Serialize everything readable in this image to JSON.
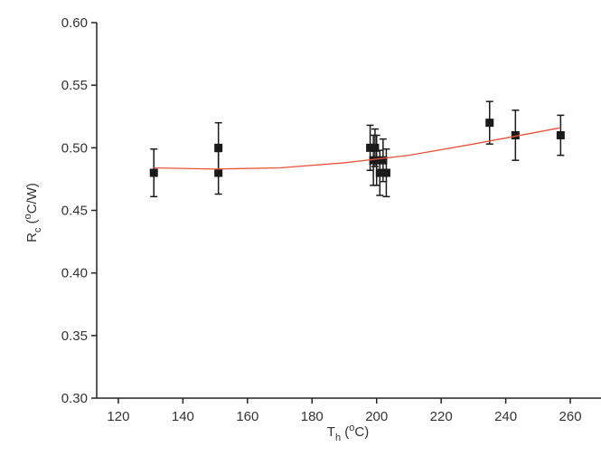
{
  "chart_data": {
    "type": "scatter",
    "x_label": {
      "main": "T",
      "sub": "h",
      "pre": " (",
      "sup": "o",
      "post": "C)"
    },
    "y_label": {
      "main": "R",
      "sub": "c",
      "pre": " (",
      "sup": "o",
      "post": "C/W)"
    },
    "xlim": [
      113.3,
      269.5
    ],
    "ylim": [
      0.3,
      0.6
    ],
    "xticks": [
      120,
      140,
      160,
      180,
      200,
      220,
      240,
      260
    ],
    "yticks": [
      {
        "value": 0.3,
        "label": "0.30"
      },
      {
        "value": 0.35,
        "label": "0.35"
      },
      {
        "value": 0.4,
        "label": "0.40"
      },
      {
        "value": 0.45,
        "label": "0.45"
      },
      {
        "value": 0.5,
        "label": "0.50"
      },
      {
        "value": 0.55,
        "label": "0.55"
      },
      {
        "value": 0.6,
        "label": "0.60"
      }
    ],
    "series": [
      {
        "kind": "points",
        "color": "#1a1a1a",
        "x": [
          131,
          151,
          151,
          198,
          199,
          199.5,
          200,
          201,
          202,
          203,
          235,
          243,
          257
        ],
        "values": [
          0.48,
          0.48,
          0.5,
          0.5,
          0.49,
          0.5,
          0.49,
          0.48,
          0.49,
          0.48,
          0.52,
          0.51,
          0.51
        ],
        "errors": [
          0.019,
          0.017,
          0.02,
          0.018,
          0.02,
          0.015,
          0.02,
          0.018,
          0.017,
          0.019,
          0.017,
          0.02,
          0.016
        ]
      },
      {
        "kind": "fit",
        "color": "#e8543a",
        "x": [
          131,
          150,
          170,
          190,
          210,
          230,
          257
        ],
        "values": [
          0.484,
          0.483,
          0.484,
          0.488,
          0.494,
          0.503,
          0.516
        ]
      }
    ]
  }
}
